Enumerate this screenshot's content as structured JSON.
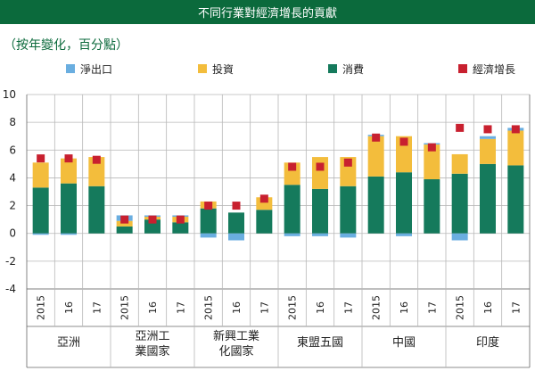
{
  "title": "不同行業對經濟增長的貢獻",
  "subtitle": "（按年變化，百分點）",
  "colors": {
    "header_bg": "#0b6a3c",
    "net_exports": "#6aaee0",
    "investment": "#f3bd3c",
    "consumption": "#157a5c",
    "gdp_growth": "#c8202f"
  },
  "chart_data": {
    "type": "bar",
    "stacked": true,
    "ylim": [
      -4,
      10
    ],
    "yticks": [
      -4,
      -2,
      0,
      2,
      4,
      6,
      8,
      10
    ],
    "grid": true,
    "legend_position": "top",
    "year_labels": [
      "2015",
      "16",
      "17"
    ],
    "groups": [
      {
        "label": "亞洲",
        "label_lines": [
          "亞洲"
        ]
      },
      {
        "label": "亞洲工業國家",
        "label_lines": [
          "亞洲工",
          "業國家"
        ]
      },
      {
        "label": "新興工業化國家",
        "label_lines": [
          "新興工業",
          "化國家"
        ]
      },
      {
        "label": "東盟五國",
        "label_lines": [
          "東盟五國"
        ]
      },
      {
        "label": "中國",
        "label_lines": [
          "中國"
        ]
      },
      {
        "label": "印度",
        "label_lines": [
          "印度"
        ]
      }
    ],
    "categories": [
      "亞洲 2015",
      "亞洲 16",
      "亞洲 17",
      "亞洲工業國家 2015",
      "亞洲工業國家 16",
      "亞洲工業國家 17",
      "新興工業化國家 2015",
      "新興工業化國家 16",
      "新興工業化國家 17",
      "東盟五國 2015",
      "東盟五國 16",
      "東盟五國 17",
      "中國 2015",
      "中國 16",
      "中國 17",
      "印度 2015",
      "印度 16",
      "印度 17"
    ],
    "series": [
      {
        "name": "淨出口",
        "kind": "bar",
        "values": [
          -0.1,
          -0.1,
          0.0,
          0.4,
          0.1,
          0.1,
          -0.3,
          -0.5,
          0.0,
          -0.2,
          -0.2,
          -0.3,
          0.1,
          -0.2,
          0.1,
          -0.5,
          0.2,
          0.2
        ]
      },
      {
        "name": "投資",
        "kind": "bar",
        "values": [
          1.8,
          1.8,
          2.1,
          0.4,
          0.2,
          0.4,
          0.5,
          0.0,
          0.9,
          1.6,
          2.3,
          2.1,
          2.9,
          2.6,
          2.5,
          1.4,
          1.8,
          2.5
        ]
      },
      {
        "name": "消費",
        "kind": "bar",
        "values": [
          3.3,
          3.6,
          3.4,
          0.5,
          1.0,
          0.8,
          1.8,
          1.5,
          1.7,
          3.5,
          3.2,
          3.4,
          4.1,
          4.4,
          3.9,
          4.3,
          5.0,
          4.9
        ]
      },
      {
        "name": "經濟增長",
        "kind": "marker",
        "values": [
          5.4,
          5.4,
          5.3,
          1.0,
          1.0,
          1.0,
          2.0,
          2.0,
          2.5,
          4.8,
          4.8,
          5.1,
          6.9,
          6.6,
          6.2,
          7.6,
          7.5,
          7.5
        ]
      }
    ]
  }
}
